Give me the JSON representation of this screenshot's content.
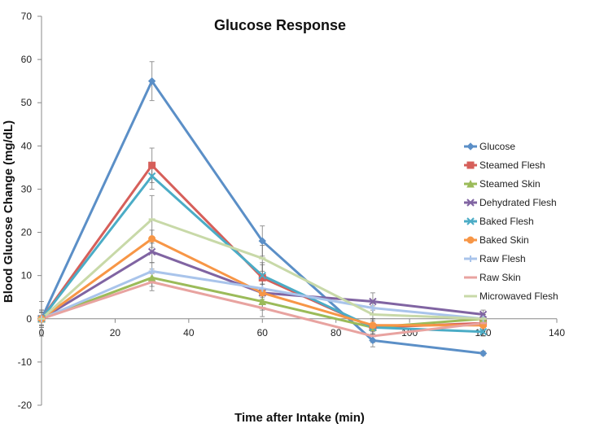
{
  "chart_data": {
    "type": "line",
    "title": "Glucose Response",
    "xlabel": "Time after Intake (min)",
    "ylabel": "Blood Glucose Change (mg/dL)",
    "xlim": [
      0,
      140
    ],
    "ylim": [
      -20,
      70
    ],
    "x_ticks": [
      "0",
      "20",
      "40",
      "60",
      "80",
      "100",
      "120",
      "140"
    ],
    "y_ticks": [
      "-20",
      "-10",
      "0",
      "10",
      "20",
      "30",
      "40",
      "50",
      "60",
      "70"
    ],
    "grid": false,
    "legend_position": "right",
    "x": [
      0,
      30,
      60,
      90,
      120
    ],
    "series": [
      {
        "name": "Glucose",
        "color": "#5b8fc7",
        "marker": "diamond",
        "values": [
          0,
          55,
          18,
          -5,
          -8
        ],
        "errors": [
          4,
          4.5,
          3.5,
          1.5,
          0.5
        ]
      },
      {
        "name": "Steamed Flesh",
        "color": "#d65f5a",
        "marker": "square",
        "values": [
          0,
          35.5,
          9.5,
          -2,
          -1
        ],
        "errors": [
          2,
          4,
          3,
          2,
          1
        ]
      },
      {
        "name": "Steamed Skin",
        "color": "#9bbb59",
        "marker": "triangle",
        "values": [
          0,
          9.5,
          4,
          -2,
          0
        ],
        "errors": [
          1.5,
          2,
          2,
          1.5,
          1
        ]
      },
      {
        "name": "Dehydrated Flesh",
        "color": "#8064a2",
        "marker": "x",
        "values": [
          0,
          15.5,
          6,
          4,
          1
        ],
        "errors": [
          1.5,
          2.5,
          2,
          2,
          1
        ]
      },
      {
        "name": "Baked Flesh",
        "color": "#4bacc6",
        "marker": "x",
        "values": [
          0,
          33,
          10,
          -2,
          -3
        ],
        "errors": [
          2,
          3,
          3,
          2,
          1
        ]
      },
      {
        "name": "Baked Skin",
        "color": "#f79646",
        "marker": "circle",
        "values": [
          0,
          18.5,
          6,
          -1.5,
          -1.5
        ],
        "errors": [
          1.5,
          2,
          2,
          1.5,
          1
        ]
      },
      {
        "name": "Raw Flesh",
        "color": "#a9c4eb",
        "marker": "plus",
        "values": [
          0,
          11,
          7,
          2.5,
          0
        ],
        "errors": [
          1.5,
          2,
          2,
          1.5,
          1
        ]
      },
      {
        "name": "Raw  Skin",
        "color": "#e8a3a0",
        "marker": "dash",
        "values": [
          0,
          8.5,
          2.5,
          -4,
          -1
        ],
        "errors": [
          1.5,
          2,
          2,
          1.5,
          1
        ]
      },
      {
        "name": "Microwaved Flesh",
        "color": "#c8d9a8",
        "marker": "dash",
        "values": [
          0,
          23,
          14,
          1,
          0
        ],
        "errors": [
          1.5,
          5.5,
          3,
          2,
          1
        ]
      }
    ]
  }
}
